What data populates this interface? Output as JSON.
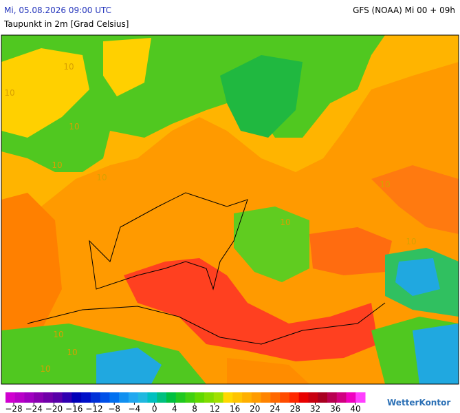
{
  "header": {
    "datetime": "Mi, 05.08.2026 09:00 UTC",
    "model": "GFS (NOAA) Mi 00 + 09h",
    "title": "Taupunkt in 2m [Grad Celsius]"
  },
  "map": {
    "contour_labels": [
      "10",
      "10",
      "10",
      "10",
      "10",
      "10",
      "10",
      "10",
      "10",
      "10",
      "10"
    ]
  },
  "legend": {
    "colors": [
      "#d000d0",
      "#b800c8",
      "#a000c0",
      "#8800b0",
      "#7000a8",
      "#5800a8",
      "#3000b0",
      "#0000b8",
      "#0010c8",
      "#0030d8",
      "#0050e8",
      "#0070f0",
      "#1090f0",
      "#20a8f0",
      "#20b8e0",
      "#00c0c0",
      "#00c080",
      "#00c040",
      "#20c820",
      "#40d010",
      "#60d800",
      "#80dc00",
      "#a0e000",
      "#ffd800",
      "#ffc400",
      "#ffb000",
      "#ff9c00",
      "#ff8400",
      "#ff6800",
      "#ff4c00",
      "#ff2800",
      "#e80000",
      "#c80010",
      "#a80020",
      "#b80050",
      "#d00080",
      "#f000c0",
      "#ff40ff"
    ],
    "ticks": [
      {
        "value": -28,
        "label": "−28"
      },
      {
        "value": -24,
        "label": "−24"
      },
      {
        "value": -20,
        "label": "−20"
      },
      {
        "value": -16,
        "label": "−16"
      },
      {
        "value": -12,
        "label": "−12"
      },
      {
        "value": -8,
        "label": "−8"
      },
      {
        "value": -4,
        "label": "−4"
      },
      0,
      4,
      8,
      12,
      16,
      20,
      24,
      28,
      32,
      36,
      40
    ]
  },
  "brand": "WetterKontor"
}
